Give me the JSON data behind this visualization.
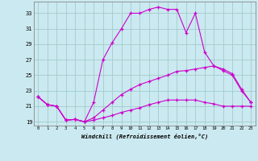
{
  "xlabel": "Windchill (Refroidissement éolien,°C)",
  "bg_color": "#cbe9f0",
  "grid_color": "#a0cccc",
  "line_color": "#cc00cc",
  "hours": [
    0,
    1,
    2,
    3,
    4,
    5,
    6,
    7,
    8,
    9,
    10,
    11,
    12,
    13,
    14,
    15,
    16,
    17,
    18,
    19,
    20,
    21,
    22,
    23
  ],
  "temp": [
    22.2,
    21.2,
    21.0,
    19.2,
    19.3,
    19.0,
    21.5,
    27.0,
    29.2,
    31.0,
    33.0,
    33.0,
    33.5,
    33.8,
    33.5,
    33.5,
    30.5,
    33.0,
    28.0,
    26.2,
    25.6,
    25.0,
    23.0,
    21.5
  ],
  "windchill": [
    22.2,
    21.2,
    21.0,
    19.2,
    19.3,
    19.0,
    19.5,
    20.5,
    21.5,
    22.5,
    23.2,
    23.8,
    24.2,
    24.6,
    25.0,
    25.5,
    25.6,
    25.8,
    26.0,
    26.2,
    25.8,
    25.2,
    23.2,
    21.5
  ],
  "minline": [
    22.2,
    21.2,
    21.0,
    19.2,
    19.3,
    19.0,
    19.2,
    19.5,
    19.8,
    20.2,
    20.5,
    20.8,
    21.2,
    21.5,
    21.8,
    21.8,
    21.8,
    21.8,
    21.5,
    21.3,
    21.0,
    21.0,
    21.0,
    21.0
  ],
  "ylim": [
    18.5,
    34.5
  ],
  "yticks": [
    19,
    21,
    23,
    25,
    27,
    29,
    31,
    33
  ],
  "xlim": [
    -0.5,
    23.5
  ],
  "xticks": [
    0,
    1,
    2,
    3,
    4,
    5,
    6,
    7,
    8,
    9,
    10,
    11,
    12,
    13,
    14,
    15,
    16,
    17,
    18,
    19,
    20,
    21,
    22,
    23
  ]
}
